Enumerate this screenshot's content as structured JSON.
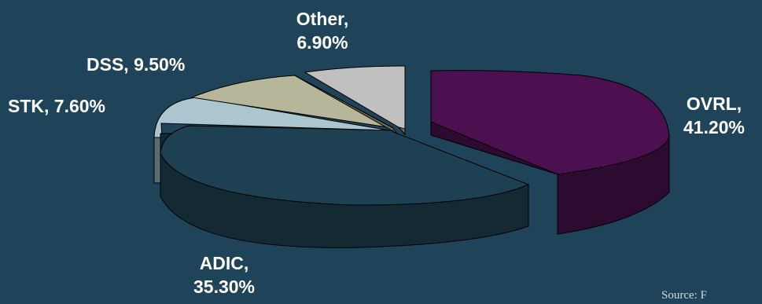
{
  "chart_data": {
    "type": "pie",
    "style": "3d-exploded",
    "slices": [
      {
        "label": "OVRL",
        "value": 41.2,
        "display": "41.20%",
        "color": "#4c0f50",
        "exploded": true
      },
      {
        "label": "ADIC",
        "value": 35.3,
        "display": "35.30%",
        "color": "#1d4152",
        "exploded": false
      },
      {
        "label": "STK",
        "value": 7.6,
        "display": "7.60%",
        "color": "#abc6cf",
        "exploded": false
      },
      {
        "label": "DSS",
        "value": 9.5,
        "display": "9.50%",
        "color": "#b5b69a",
        "exploded": false
      },
      {
        "label": "Other",
        "value": 6.9,
        "display": "6.90%",
        "color": "#c0c0c0",
        "exploded": false
      }
    ],
    "labels_text": {
      "ovrl_line1": "OVRL,",
      "ovrl_line2": "41.20%",
      "adic_line1": "ADIC,",
      "adic_line2": "35.30%",
      "stk": "STK, 7.60%",
      "dss": "DSS, 9.50%",
      "other_line1": "Other,",
      "other_line2": "6.90%"
    }
  },
  "footer": {
    "source_text": "Source: F"
  },
  "colors": {
    "background": "#1f4459",
    "label_text": "#ffffff"
  }
}
